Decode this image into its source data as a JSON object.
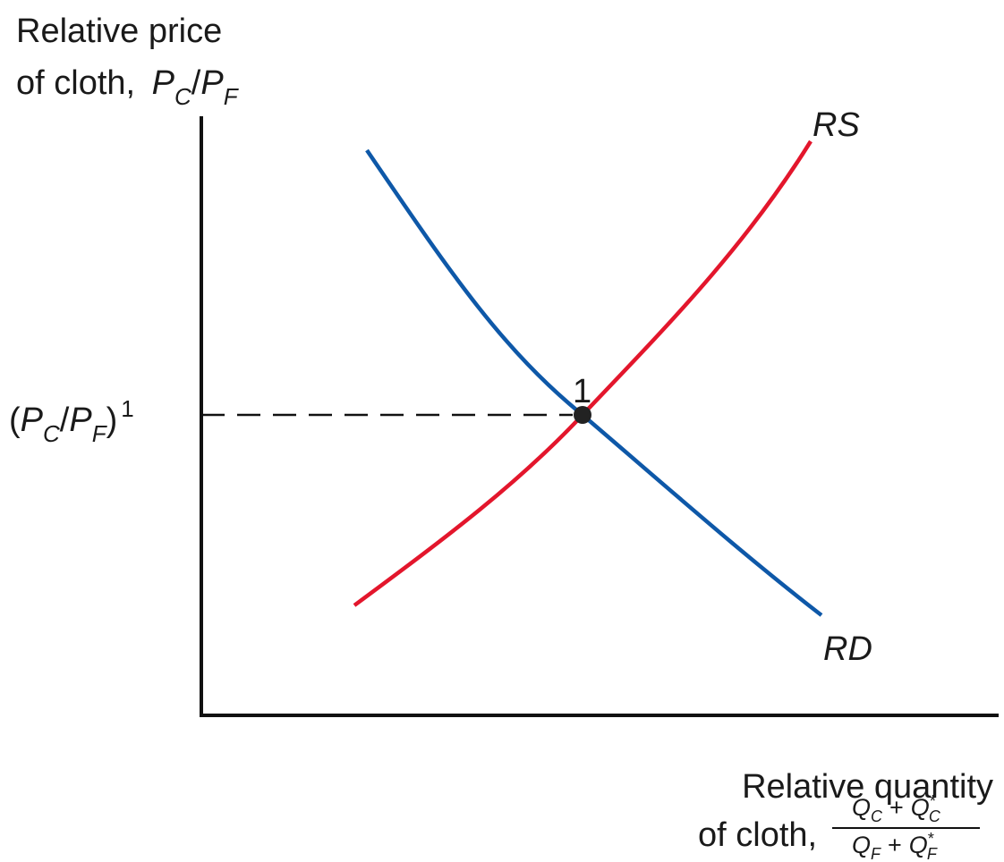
{
  "y_axis": {
    "label": [
      "Relative price",
      "of cloth,"
    ],
    "variable": {
      "p1": "P",
      "s1": "C",
      "slash": "/",
      "p2": "P",
      "s2": "F"
    }
  },
  "price_level": {
    "open": "(",
    "p1": "P",
    "s1": "C",
    "slash": "/",
    "p2": "P",
    "s2": "F",
    "close": ")",
    "sup": "1"
  },
  "curves": {
    "supply": "RS",
    "demand": "RD"
  },
  "equilibrium": "1",
  "x_axis": {
    "label": [
      "Relative quantity",
      "of cloth,"
    ],
    "numerator": {
      "q1": "Q",
      "s1": "C",
      "plus": "+",
      "q2": "Q",
      "s2": "C",
      "star": "*"
    },
    "denominator": {
      "q1": "Q",
      "s1": "F",
      "plus": "+",
      "q2": "Q",
      "s2": "F",
      "star": "*"
    }
  }
}
